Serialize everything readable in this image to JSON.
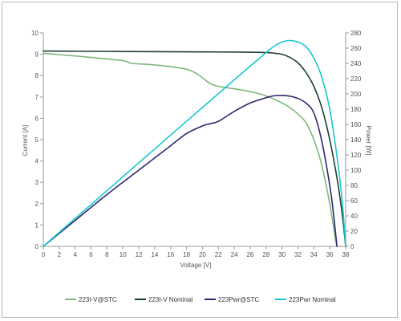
{
  "chart_data": {
    "type": "line",
    "title": "",
    "xlabel": "Voltage [V]",
    "ylabel_left": "Current [A]",
    "ylabel_right": "Power [W]",
    "xlim": [
      0,
      38
    ],
    "ylim_left": [
      0,
      10
    ],
    "ylim_right": [
      0,
      280
    ],
    "x_ticks": [
      0,
      2,
      4,
      6,
      8,
      10,
      12,
      14,
      16,
      18,
      20,
      22,
      24,
      26,
      28,
      30,
      32,
      34,
      36,
      38
    ],
    "y_left_ticks": [
      0,
      1,
      2,
      3,
      4,
      5,
      6,
      7,
      8,
      9,
      10
    ],
    "y_right_ticks": [
      0,
      20,
      40,
      60,
      80,
      100,
      120,
      140,
      160,
      180,
      200,
      220,
      240,
      260,
      280
    ],
    "grid": false,
    "legend_position": "bottom",
    "series": [
      {
        "name": "223I-V@STC",
        "axis": "left",
        "color": "#7cb87a",
        "points": [
          [
            0,
            9.05
          ],
          [
            2,
            8.98
          ],
          [
            4,
            8.92
          ],
          [
            6,
            8.85
          ],
          [
            8,
            8.78
          ],
          [
            10,
            8.7
          ],
          [
            10.5,
            8.65
          ],
          [
            11,
            8.58
          ],
          [
            12,
            8.55
          ],
          [
            14,
            8.5
          ],
          [
            16,
            8.42
          ],
          [
            18,
            8.3
          ],
          [
            19,
            8.15
          ],
          [
            20,
            7.9
          ],
          [
            21,
            7.62
          ],
          [
            22,
            7.5
          ],
          [
            24,
            7.38
          ],
          [
            26,
            7.25
          ],
          [
            28,
            7.05
          ],
          [
            30,
            6.72
          ],
          [
            31,
            6.5
          ],
          [
            32,
            6.2
          ],
          [
            33,
            5.8
          ],
          [
            34,
            5.0
          ],
          [
            35,
            3.8
          ],
          [
            36,
            2.0
          ],
          [
            36.6,
            0.6
          ],
          [
            36.9,
            0.0
          ]
        ]
      },
      {
        "name": "223I-V Nominal",
        "axis": "left",
        "color": "#1f3d36",
        "points": [
          [
            0,
            9.15
          ],
          [
            5,
            9.14
          ],
          [
            10,
            9.13
          ],
          [
            15,
            9.12
          ],
          [
            20,
            9.11
          ],
          [
            25,
            9.1
          ],
          [
            28,
            9.08
          ],
          [
            29,
            9.05
          ],
          [
            30,
            9.0
          ],
          [
            31,
            8.85
          ],
          [
            32,
            8.6
          ],
          [
            33,
            8.15
          ],
          [
            34,
            7.5
          ],
          [
            35,
            6.5
          ],
          [
            36,
            5.0
          ],
          [
            37,
            3.0
          ],
          [
            37.6,
            1.4
          ],
          [
            38,
            0.0
          ]
        ]
      },
      {
        "name": "223Pwr@STC",
        "axis": "right",
        "color": "#2f2470",
        "points": [
          [
            0,
            0
          ],
          [
            4,
            34
          ],
          [
            8,
            68
          ],
          [
            12,
            100
          ],
          [
            16,
            132
          ],
          [
            18,
            148
          ],
          [
            20,
            158
          ],
          [
            21,
            161
          ],
          [
            22,
            164
          ],
          [
            24,
            177
          ],
          [
            26,
            188
          ],
          [
            28,
            195
          ],
          [
            29,
            197.5
          ],
          [
            30,
            198
          ],
          [
            31,
            197
          ],
          [
            32,
            194
          ],
          [
            33,
            188
          ],
          [
            34,
            175
          ],
          [
            35,
            138
          ],
          [
            36,
            80
          ],
          [
            36.5,
            40
          ],
          [
            36.9,
            0
          ]
        ]
      },
      {
        "name": "223Pwr Nominal",
        "axis": "right",
        "color": "#19c6cf",
        "points": [
          [
            0,
            0
          ],
          [
            4,
            36.6
          ],
          [
            8,
            73.1
          ],
          [
            12,
            109.6
          ],
          [
            16,
            146
          ],
          [
            20,
            182.2
          ],
          [
            24,
            218.4
          ],
          [
            28,
            254.2
          ],
          [
            29,
            262.5
          ],
          [
            30,
            268
          ],
          [
            31,
            270
          ],
          [
            32,
            268
          ],
          [
            33,
            262
          ],
          [
            34,
            247
          ],
          [
            35,
            222
          ],
          [
            36,
            180
          ],
          [
            37,
            111
          ],
          [
            37.6,
            55
          ],
          [
            38,
            0
          ]
        ]
      }
    ]
  }
}
